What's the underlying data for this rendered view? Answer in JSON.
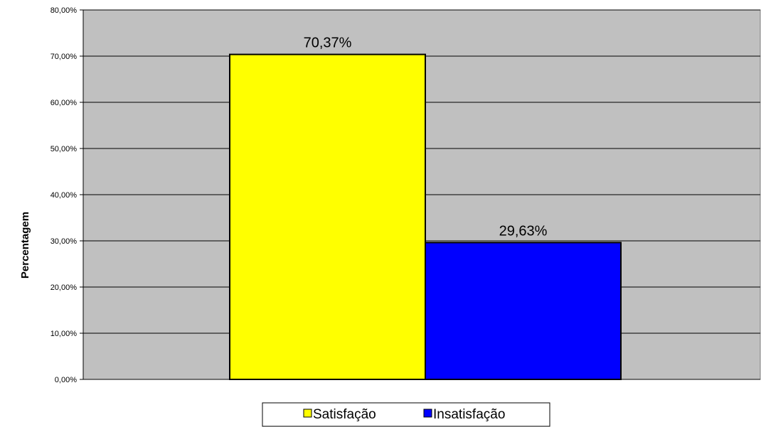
{
  "chart_data": {
    "type": "bar",
    "title": "",
    "xlabel": "",
    "ylabel": "Percentagem",
    "ylim": [
      0,
      80
    ],
    "y_ticks": [
      "0,00%",
      "10,00%",
      "20,00%",
      "30,00%",
      "40,00%",
      "50,00%",
      "60,00%",
      "70,00%",
      "80,00%"
    ],
    "grid": true,
    "plot_background": "#C0C0C0",
    "legend_position": "bottom",
    "series": [
      {
        "name": "Satisfação",
        "value": 70.37,
        "label": "70,37%",
        "color": "#FFFF00"
      },
      {
        "name": "Insatisfação",
        "value": 29.63,
        "label": "29,63%",
        "color": "#0000FF"
      }
    ]
  }
}
